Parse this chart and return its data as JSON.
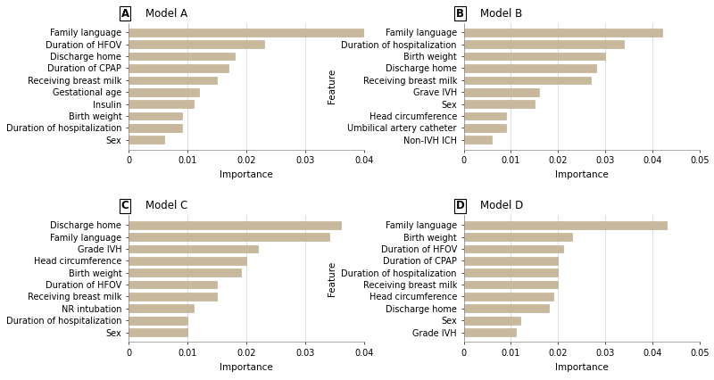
{
  "models": {
    "A": {
      "title": "Model A",
      "label": "A",
      "features": [
        "Family language",
        "Duration of HFOV",
        "Discharge home",
        "Duration of CPAP",
        "Receiving breast milk",
        "Gestational age",
        "Insulin",
        "Birth weight",
        "Duration of hospitalization",
        "Sex"
      ],
      "values": [
        0.04,
        0.023,
        0.018,
        0.017,
        0.015,
        0.012,
        0.011,
        0.009,
        0.009,
        0.006
      ],
      "xlim": [
        0,
        0.04
      ],
      "xticks": [
        0,
        0.01,
        0.02,
        0.03,
        0.04
      ]
    },
    "B": {
      "title": "Model B",
      "label": "B",
      "features": [
        "Family language",
        "Duration of hospitalization",
        "Birth weight",
        "Discharge home",
        "Receiving breast milk",
        "Grave IVH",
        "Sex",
        "Head circumference",
        "Umbilical artery catheter",
        "Non-IVH ICH"
      ],
      "values": [
        0.042,
        0.034,
        0.03,
        0.028,
        0.027,
        0.016,
        0.015,
        0.009,
        0.009,
        0.006
      ],
      "xlim": [
        0,
        0.05
      ],
      "xticks": [
        0,
        0.01,
        0.02,
        0.03,
        0.04,
        0.05
      ]
    },
    "C": {
      "title": "Model C",
      "label": "C",
      "features": [
        "Discharge home",
        "Family language",
        "Grade IVH",
        "Head circumference",
        "Birth weight",
        "Duration of HFOV",
        "Receiving breast milk",
        "NR intubation",
        "Duration of hospitalization",
        "Sex"
      ],
      "values": [
        0.036,
        0.034,
        0.022,
        0.02,
        0.019,
        0.015,
        0.015,
        0.011,
        0.01,
        0.01
      ],
      "xlim": [
        0,
        0.04
      ],
      "xticks": [
        0,
        0.01,
        0.02,
        0.03,
        0.04
      ]
    },
    "D": {
      "title": "Model D",
      "label": "D",
      "features": [
        "Family language",
        "Birth weight",
        "Duration of HFOV",
        "Duration of CPAP",
        "Duration of hospitalization",
        "Receiving breast milk",
        "Head circumference",
        "Discharge home",
        "Sex",
        "Grade IVH"
      ],
      "values": [
        0.043,
        0.023,
        0.021,
        0.02,
        0.02,
        0.02,
        0.019,
        0.018,
        0.012,
        0.011
      ],
      "xlim": [
        0,
        0.05
      ],
      "xticks": [
        0,
        0.01,
        0.02,
        0.03,
        0.04,
        0.05
      ]
    }
  },
  "bar_color": "#c8b99c",
  "bar_edgecolor": "#b8a88c",
  "background_color": "#ffffff",
  "xlabel": "Importance",
  "ylabel": "Feature",
  "title_fontsize": 8.5,
  "label_fontsize": 7.5,
  "tick_fontsize": 7.0,
  "panel_label_fontsize": 8.5
}
